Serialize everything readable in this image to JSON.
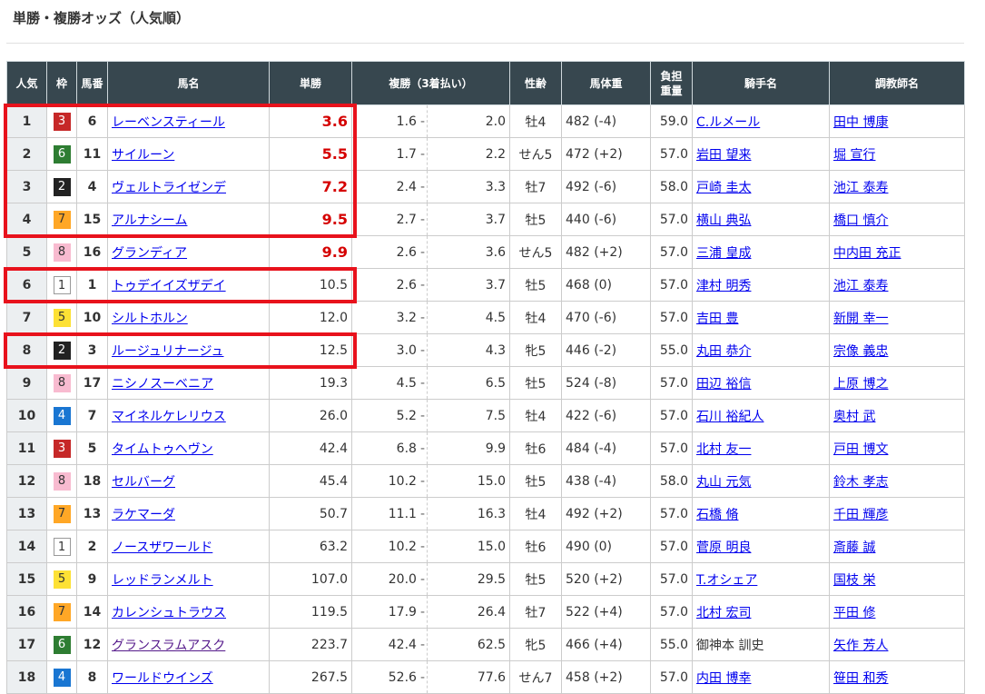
{
  "title": "単勝・複勝オッズ（人気順）",
  "headers": {
    "pop": "人気",
    "waku": "枠",
    "num": "馬番",
    "name": "馬名",
    "win": "単勝",
    "place": "複勝（3着払い）",
    "sexage": "性齢",
    "weight": "馬体重",
    "burden1": "負担",
    "burden2": "重量",
    "jockey": "騎手名",
    "trainer": "調教師名"
  },
  "colors": {
    "header_bg": "#37474f",
    "highlight": "#e8121c",
    "hot_odds": "#d50000",
    "waku1": "#ffffff",
    "waku2": "#222222",
    "waku3": "#c62828",
    "waku4": "#1976d2",
    "waku5": "#fde135",
    "waku6": "#2e7d32",
    "waku7": "#ffa726",
    "waku8": "#f8bbd0"
  },
  "highlighted_popularity": [
    1,
    2,
    3,
    4,
    6,
    8
  ],
  "rows": [
    {
      "pop": "1",
      "waku": "3",
      "num": "6",
      "name": "レーベンスティール",
      "win": "3.6",
      "pl_lo": "1.6",
      "pl_hi": "2.0",
      "sexage": "牡4",
      "weight": "482 (-4)",
      "burden": "59.0",
      "jockey": "C.ルメール",
      "trainer": "田中 博康",
      "hot": true
    },
    {
      "pop": "2",
      "waku": "6",
      "num": "11",
      "name": "サイルーン",
      "win": "5.5",
      "pl_lo": "1.7",
      "pl_hi": "2.2",
      "sexage": "せん5",
      "weight": "472 (+2)",
      "burden": "57.0",
      "jockey": "岩田 望来",
      "trainer": "堀 宣行",
      "hot": true
    },
    {
      "pop": "3",
      "waku": "2",
      "num": "4",
      "name": "ヴェルトライゼンデ",
      "win": "7.2",
      "pl_lo": "2.4",
      "pl_hi": "3.3",
      "sexage": "牡7",
      "weight": "492 (-6)",
      "burden": "58.0",
      "jockey": "戸崎 圭太",
      "trainer": "池江 泰寿",
      "hot": true
    },
    {
      "pop": "4",
      "waku": "7",
      "num": "15",
      "name": "アルナシーム",
      "win": "9.5",
      "pl_lo": "2.7",
      "pl_hi": "3.7",
      "sexage": "牡5",
      "weight": "440 (-6)",
      "burden": "57.0",
      "jockey": "横山 典弘",
      "trainer": "橋口 慎介",
      "hot": true
    },
    {
      "pop": "5",
      "waku": "8",
      "num": "16",
      "name": "グランディア",
      "win": "9.9",
      "pl_lo": "2.6",
      "pl_hi": "3.6",
      "sexage": "せん5",
      "weight": "482 (+2)",
      "burden": "57.0",
      "jockey": "三浦 皇成",
      "trainer": "中内田 充正",
      "hot": true
    },
    {
      "pop": "6",
      "waku": "1",
      "num": "1",
      "name": "トゥデイイズザデイ",
      "win": "10.5",
      "pl_lo": "2.6",
      "pl_hi": "3.7",
      "sexage": "牡5",
      "weight": "468 (0)",
      "burden": "57.0",
      "jockey": "津村 明秀",
      "trainer": "池江 泰寿"
    },
    {
      "pop": "7",
      "waku": "5",
      "num": "10",
      "name": "シルトホルン",
      "win": "12.0",
      "pl_lo": "3.2",
      "pl_hi": "4.5",
      "sexage": "牡4",
      "weight": "470 (-6)",
      "burden": "57.0",
      "jockey": "吉田 豊",
      "trainer": "新開 幸一"
    },
    {
      "pop": "8",
      "waku": "2",
      "num": "3",
      "name": "ルージュリナージュ",
      "win": "12.5",
      "pl_lo": "3.0",
      "pl_hi": "4.3",
      "sexage": "牝5",
      "weight": "446 (-2)",
      "burden": "55.0",
      "jockey": "丸田 恭介",
      "trainer": "宗像 義忠"
    },
    {
      "pop": "9",
      "waku": "8",
      "num": "17",
      "name": "ニシノスーベニア",
      "win": "19.3",
      "pl_lo": "4.5",
      "pl_hi": "6.5",
      "sexage": "牡5",
      "weight": "524 (-8)",
      "burden": "57.0",
      "jockey": "田辺 裕信",
      "trainer": "上原 博之"
    },
    {
      "pop": "10",
      "waku": "4",
      "num": "7",
      "name": "マイネルケレリウス",
      "win": "26.0",
      "pl_lo": "5.2",
      "pl_hi": "7.5",
      "sexage": "牡4",
      "weight": "422 (-6)",
      "burden": "57.0",
      "jockey": "石川 裕紀人",
      "trainer": "奥村 武"
    },
    {
      "pop": "11",
      "waku": "3",
      "num": "5",
      "name": "タイムトゥヘヴン",
      "win": "42.4",
      "pl_lo": "6.8",
      "pl_hi": "9.9",
      "sexage": "牡6",
      "weight": "484 (-4)",
      "burden": "57.0",
      "jockey": "北村 友一",
      "trainer": "戸田 博文"
    },
    {
      "pop": "12",
      "waku": "8",
      "num": "18",
      "name": "セルバーグ",
      "win": "45.4",
      "pl_lo": "10.2",
      "pl_hi": "15.0",
      "sexage": "牡5",
      "weight": "438 (-4)",
      "burden": "58.0",
      "jockey": "丸山 元気",
      "trainer": "鈴木 孝志"
    },
    {
      "pop": "13",
      "waku": "7",
      "num": "13",
      "name": "ラケマーダ",
      "win": "50.7",
      "pl_lo": "11.1",
      "pl_hi": "16.3",
      "sexage": "牡4",
      "weight": "492 (+2)",
      "burden": "57.0",
      "jockey": "石橋 脩",
      "trainer": "千田 輝彦"
    },
    {
      "pop": "14",
      "waku": "1",
      "num": "2",
      "name": "ノースザワールド",
      "win": "63.2",
      "pl_lo": "10.2",
      "pl_hi": "15.0",
      "sexage": "牡6",
      "weight": "490 (0)",
      "burden": "57.0",
      "jockey": "菅原 明良",
      "trainer": "斎藤 誠"
    },
    {
      "pop": "15",
      "waku": "5",
      "num": "9",
      "name": "レッドランメルト",
      "win": "107.0",
      "pl_lo": "20.0",
      "pl_hi": "29.5",
      "sexage": "牡5",
      "weight": "520 (+2)",
      "burden": "57.0",
      "jockey": "T.オシェア",
      "trainer": "国枝 栄"
    },
    {
      "pop": "16",
      "waku": "7",
      "num": "14",
      "name": "カレンシュトラウス",
      "win": "119.5",
      "pl_lo": "17.9",
      "pl_hi": "26.4",
      "sexage": "牡7",
      "weight": "522 (+4)",
      "burden": "57.0",
      "jockey": "北村 宏司",
      "trainer": "平田 修"
    },
    {
      "pop": "17",
      "waku": "6",
      "num": "12",
      "name": "グランスラムアスク",
      "win": "223.7",
      "pl_lo": "42.4",
      "pl_hi": "62.5",
      "sexage": "牝5",
      "weight": "466 (+4)",
      "burden": "55.0",
      "jockey": "御神本 訓史",
      "trainer": "矢作 芳人",
      "visited": true,
      "jockey_nolink": true
    },
    {
      "pop": "18",
      "waku": "4",
      "num": "8",
      "name": "ワールドウインズ",
      "win": "267.5",
      "pl_lo": "52.6",
      "pl_hi": "77.6",
      "sexage": "せん7",
      "weight": "458 (+2)",
      "burden": "57.0",
      "jockey": "内田 博幸",
      "trainer": "笹田 和秀"
    }
  ]
}
